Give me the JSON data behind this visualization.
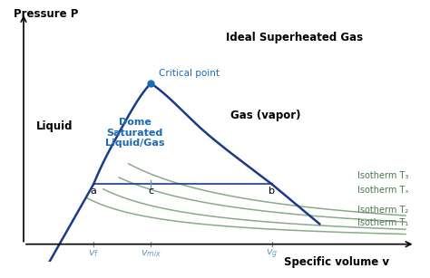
{
  "bg_color": "#ffffff",
  "dome_color": "#1a3a8a",
  "isotherm_color": "#4a7a50",
  "isotherm_color_light": "#8aaa88",
  "critical_point_color": "#1a6ab5",
  "dome_label_color": "#1a6ab5",
  "liquid_label": "Liquid",
  "gas_label": "Gas (vapor)",
  "dome_label": "Dome\nSaturated\nLiquid/Gas",
  "superheated_label": "Ideal Superheated Gas",
  "critical_label": "Critical point",
  "isotherm_labels": [
    "Isotherm T₃",
    "Isotherm Tₓ",
    "Isotherm T₂",
    "Isotherm T₁"
  ],
  "xlabel": "Specific volume v",
  "ylabel": "Pressure P",
  "cp_x": 4.0,
  "cp_y": 7.5,
  "a_x": 2.2,
  "a_y": 2.8,
  "b_x": 7.8,
  "b_y": 2.8,
  "c_x": 4.0,
  "c_y": 2.8,
  "vf_x": 2.2,
  "vmix_x": 4.0,
  "vg_x": 7.8,
  "xlim": [
    -0.2,
    12.5
  ],
  "ylim": [
    -0.8,
    11.0
  ]
}
